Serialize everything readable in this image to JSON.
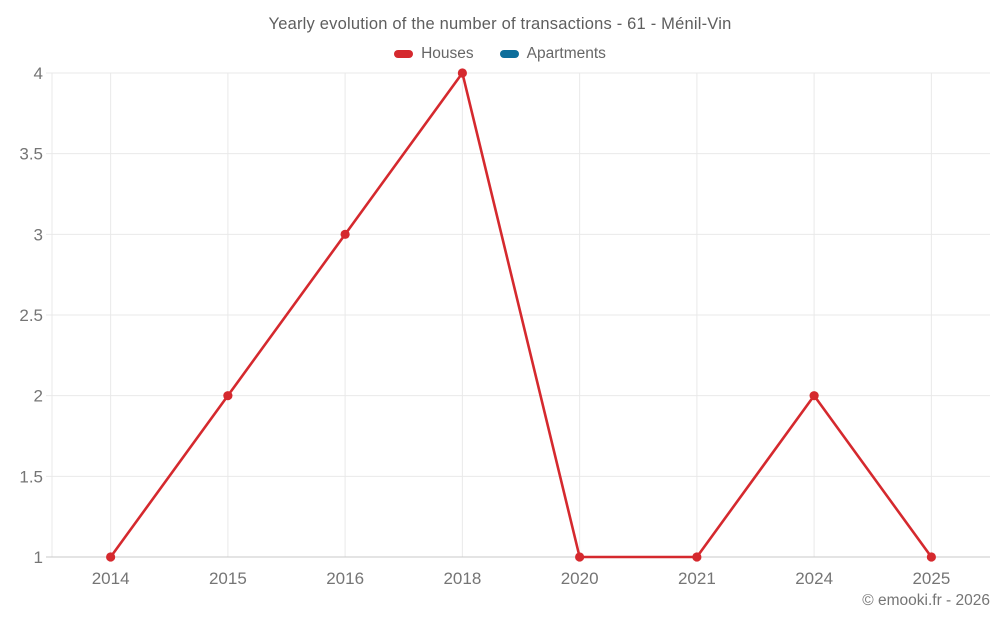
{
  "chart": {
    "title": "Yearly evolution of the number of transactions - 61 - Ménil-Vin",
    "watermark": "© emooki.fr - 2026"
  },
  "chart_data": {
    "type": "line",
    "title": "Yearly evolution of the number of transactions - 61 - Ménil-Vin",
    "categories": [
      "2014",
      "2015",
      "2016",
      "2018",
      "2020",
      "2021",
      "2024",
      "2025"
    ],
    "series": [
      {
        "name": "Houses",
        "color": "#d5292e",
        "values": [
          1,
          2,
          3,
          4,
          1,
          1,
          2,
          1
        ]
      },
      {
        "name": "Apartments",
        "color": "#0d6e9b",
        "values": []
      }
    ],
    "xlabel": "",
    "ylabel": "",
    "ylim": [
      1,
      4
    ],
    "yticks": [
      1,
      1.5,
      2,
      2.5,
      3,
      3.5,
      4
    ],
    "grid": true,
    "legend_position": "top",
    "colors": {
      "grid_line": "#e9e9e9",
      "axis_line": "#c9c9c9",
      "tick_label": "#757575",
      "title_text": "#5e5e5e",
      "legend_text": "#666666",
      "background": "#ffffff"
    }
  }
}
